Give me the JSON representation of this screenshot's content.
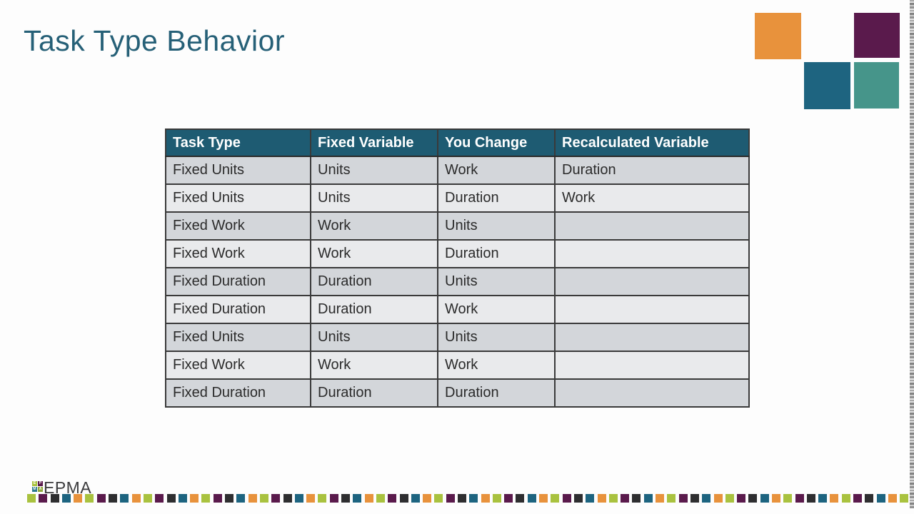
{
  "title": "Task Type Behavior",
  "colors": {
    "background": "#FDFDFD",
    "title_text": "#266077",
    "table_header_bg": "#1E5B72",
    "table_header_text": "#FFFFFF",
    "table_row_dark": "#D3D6DA",
    "table_row_light": "#E9EAEC",
    "table_border": "#3A3A3A",
    "table_cell_text": "#2B2B2B"
  },
  "corner_squares": [
    {
      "name": "orange",
      "color": "#E8923C"
    },
    {
      "name": "plum",
      "color": "#5A1A4C"
    },
    {
      "name": "teal-blue",
      "color": "#1E6480"
    },
    {
      "name": "teal-green",
      "color": "#46958A"
    }
  ],
  "table": {
    "headers": [
      "Task Type",
      "Fixed Variable",
      "You Change",
      "Recalculated Variable"
    ],
    "rows": [
      [
        "Fixed Units",
        "Units",
        "Work",
        "Duration"
      ],
      [
        "Fixed Units",
        "Units",
        "Duration",
        "Work"
      ],
      [
        "Fixed Work",
        "Work",
        "Units",
        ""
      ],
      [
        "Fixed Work",
        "Work",
        "Duration",
        ""
      ],
      [
        "Fixed Duration",
        "Duration",
        "Units",
        ""
      ],
      [
        "Fixed Duration",
        "Duration",
        "Work",
        ""
      ],
      [
        "Fixed Units",
        "Units",
        "Units",
        ""
      ],
      [
        "Fixed Work",
        "Work",
        "Work",
        ""
      ],
      [
        "Fixed Duration",
        "Duration",
        "Duration",
        ""
      ]
    ]
  },
  "footer": {
    "logo_text": "EPMA",
    "logo_tiles": [
      {
        "letter": "E",
        "color": "#A9C23F"
      },
      {
        "letter": "P",
        "color": "#5A1A4C"
      },
      {
        "letter": "M",
        "color": "#2C7A8C"
      },
      {
        "letter": "A",
        "color": "#8FA83C"
      }
    ],
    "strip": {
      "count": 76,
      "cycle": [
        "#A9C23F",
        "#5A1A4C",
        "#2E2E30",
        "#1D6480",
        "#E8923C"
      ]
    }
  }
}
